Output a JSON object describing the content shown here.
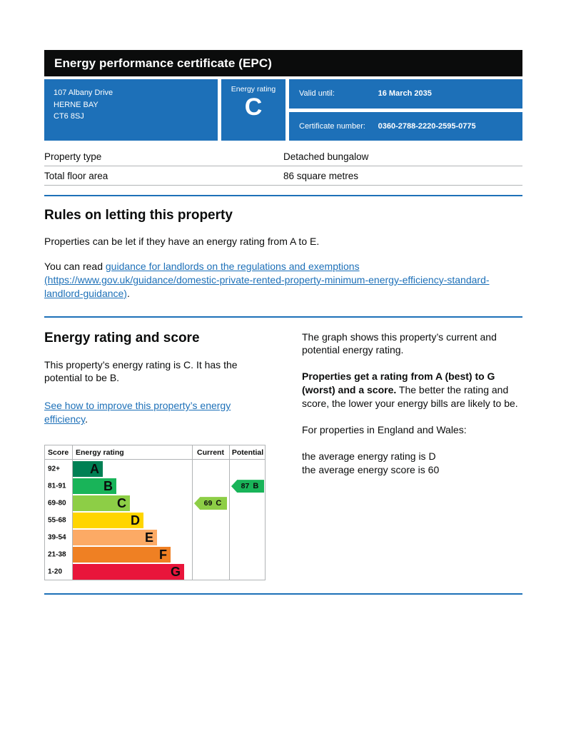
{
  "header": {
    "title": "Energy performance certificate (EPC)"
  },
  "summary": {
    "address_lines": [
      "107 Albany Drive",
      "HERNE BAY",
      "CT6 8SJ"
    ],
    "energy_rating_label": "Energy rating",
    "energy_rating_value": "C",
    "valid_until_label": "Valid until:",
    "valid_until_value": "16 March 2035",
    "certificate_number_label": "Certificate number:",
    "certificate_number_value": "0360-2788-2220-2595-0775"
  },
  "property_table": {
    "rows": [
      {
        "label": "Property type",
        "value": "Detached bungalow"
      },
      {
        "label": "Total floor area",
        "value": "86 square metres"
      }
    ]
  },
  "letting_rules": {
    "heading": "Rules on letting this property",
    "paragraph1": "Properties can be let if they have an energy rating from A to E.",
    "paragraph2_prefix": "You can read ",
    "link_text": "guidance for landlords on the regulations and exemptions (https://www.gov.uk/guidance/domestic-private-rented-property-minimum-energy-efficiency-standard-landlord-guidance)",
    "paragraph2_suffix": "."
  },
  "rating_section": {
    "heading": "Energy rating and score",
    "paragraph1": "This property’s energy rating is C. It has the potential to be B.",
    "improve_link_text": "See how to improve this property’s energy efficiency",
    "improve_link_suffix": ".",
    "graph_intro": "The graph shows this property’s current and potential energy rating.",
    "rating_explain_bold": "Properties get a rating from A (best) to G (worst) and a score.",
    "rating_explain_rest": " The better the rating and score, the lower your energy bills are likely to be.",
    "england_wales_intro": "For properties in England and Wales:",
    "average_rating_line": "the average energy rating is D",
    "average_score_line": "the average energy score is 60"
  },
  "chart_data": {
    "type": "bar",
    "title": "Energy rating and score bands",
    "columns": [
      "Score",
      "Energy rating",
      "Current",
      "Potential"
    ],
    "bands": [
      {
        "score": "92+",
        "letter": "A",
        "color": "#008054"
      },
      {
        "score": "81-91",
        "letter": "B",
        "color": "#19b459"
      },
      {
        "score": "69-80",
        "letter": "C",
        "color": "#8dce46"
      },
      {
        "score": "55-68",
        "letter": "D",
        "color": "#ffd500"
      },
      {
        "score": "39-54",
        "letter": "E",
        "color": "#fcaa65"
      },
      {
        "score": "21-38",
        "letter": "F",
        "color": "#ef8023"
      },
      {
        "score": "1-20",
        "letter": "G",
        "color": "#e9153b"
      }
    ],
    "current": {
      "score": 69,
      "letter": "C",
      "color": "#8dce46",
      "band_index": 2
    },
    "potential": {
      "score": 87,
      "letter": "B",
      "color": "#19b459",
      "band_index": 1
    }
  },
  "colors": {
    "accent_blue": "#1d70b8",
    "header_bg": "#0b0c0c"
  }
}
